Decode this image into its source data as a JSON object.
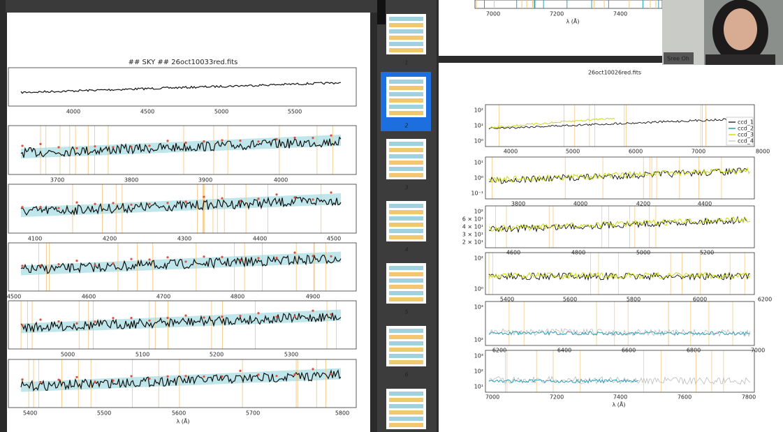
{
  "left_page": {
    "title": "##  SKY  ## 26oct10033red.fits",
    "xlabel": "λ (Å)",
    "plots": [
      {
        "xticks": [
          4000,
          4500,
          5000,
          5500
        ]
      },
      {
        "xticks": [
          3700,
          3800,
          3900,
          4000
        ]
      },
      {
        "xticks": [
          4100,
          4200,
          4300,
          4400,
          4500
        ]
      },
      {
        "xticks": [
          4500,
          4600,
          4700,
          4800,
          4900
        ]
      },
      {
        "xticks": [
          5000,
          5100,
          5200,
          5300
        ]
      },
      {
        "xticks": [
          5400,
          5500,
          5600,
          5700,
          5800
        ]
      }
    ]
  },
  "thumbnails": {
    "pages": [
      1,
      2,
      3,
      4,
      5,
      6
    ]
  },
  "right_top": {
    "xticks": [
      7000,
      7200,
      7400
    ],
    "xlabel": "λ (Å)"
  },
  "right_page": {
    "title": "26oct10026red.fits",
    "xlabel": "λ (Å)",
    "legend": [
      "ccd_1",
      "ccd_2",
      "ccd_3",
      "ccd_4"
    ],
    "plots": [
      {
        "xticks": [
          4000,
          5000,
          6000,
          7000,
          8000
        ],
        "yticks": [
          "10²",
          "10¹",
          "10⁰"
        ]
      },
      {
        "xticks": [
          3800,
          4000,
          4200,
          4400
        ],
        "yticks": [
          "10¹",
          "10⁰",
          "10⁻¹"
        ]
      },
      {
        "xticks": [
          4600,
          4800,
          5000,
          5200
        ],
        "yticks": [
          "10²",
          "6 × 10¹",
          "4 × 10¹",
          "3 × 10¹",
          "2 × 10¹"
        ]
      },
      {
        "xticks": [
          5400,
          5600,
          5800,
          6000,
          6200
        ],
        "yticks": [
          "10²",
          "10⁰"
        ]
      },
      {
        "xticks": [
          6200,
          6400,
          6600,
          6800,
          7000
        ],
        "yticks": [
          "10³",
          "10²"
        ]
      },
      {
        "xticks": [
          7000,
          7200,
          7400,
          7600,
          7800
        ],
        "yticks": [
          "10³",
          "10²",
          "10¹"
        ]
      }
    ]
  },
  "video": {
    "name": "Sree Oh"
  }
}
